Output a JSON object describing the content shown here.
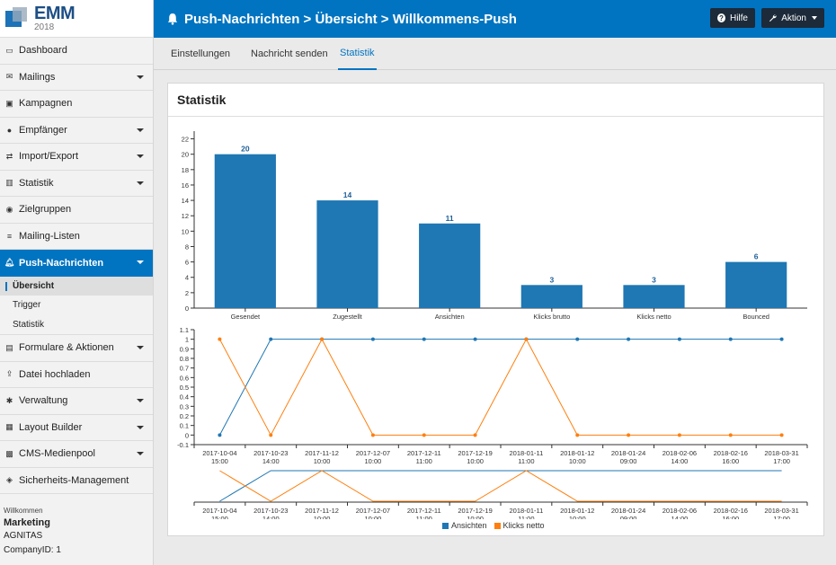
{
  "app": {
    "logo_title": "EMM",
    "logo_year": "2018"
  },
  "sidebar": {
    "items": [
      {
        "label": "Dashboard",
        "icon": "monitor-icon",
        "caret": false
      },
      {
        "label": "Mailings",
        "icon": "envelope-icon",
        "caret": true
      },
      {
        "label": "Kampagnen",
        "icon": "briefcase-icon",
        "caret": false
      },
      {
        "label": "Empfänger",
        "icon": "user-icon",
        "caret": true
      },
      {
        "label": "Import/Export",
        "icon": "exchange-icon",
        "caret": true
      },
      {
        "label": "Statistik",
        "icon": "bar-chart-icon",
        "caret": true
      },
      {
        "label": "Zielgruppen",
        "icon": "users-icon",
        "caret": false
      },
      {
        "label": "Mailing-Listen",
        "icon": "list-icon",
        "caret": false
      },
      {
        "label": "Push-Nachrichten",
        "icon": "bell-icon",
        "caret": true,
        "active": true
      },
      {
        "label": "Formulare & Aktionen",
        "icon": "form-icon",
        "caret": true
      },
      {
        "label": "Datei hochladen",
        "icon": "upload-icon",
        "caret": false
      },
      {
        "label": "Verwaltung",
        "icon": "gear-icon",
        "caret": true
      },
      {
        "label": "Layout Builder",
        "icon": "grid-icon",
        "caret": true
      },
      {
        "label": "CMS-Medienpool",
        "icon": "media-icon",
        "caret": true
      },
      {
        "label": "Sicherheits-Management",
        "icon": "shield-icon",
        "caret": false
      }
    ],
    "sub_items": [
      {
        "label": "Übersicht",
        "selected": true
      },
      {
        "label": "Trigger"
      },
      {
        "label": "Statistik"
      }
    ],
    "user": {
      "welcome": "Willkommen",
      "name": "Marketing",
      "company": "AGNITAS",
      "company_id": "CompanyID: 1"
    }
  },
  "header": {
    "title": "Push-Nachrichten > Übersicht > Willkommens-Push",
    "help_label": "Hilfe",
    "action_label": "Aktion"
  },
  "tabs": [
    {
      "label": "Einstellungen"
    },
    {
      "label": "Nachricht senden"
    },
    {
      "label": "Statistik",
      "active": true
    }
  ],
  "panel": {
    "title": "Statistik"
  },
  "colors": {
    "accent": "#0074c1",
    "bar": "#1f77b4",
    "series_ansichten": "#1f77b4",
    "series_klicks": "#ff7f0e"
  },
  "chart_data": [
    {
      "type": "bar",
      "categories": [
        "Gesendet",
        "Zugestellt",
        "Ansichten",
        "Klicks brutto",
        "Klicks netto",
        "Bounced"
      ],
      "values": [
        20,
        14,
        11,
        3,
        3,
        6
      ],
      "ylim": [
        0,
        23
      ],
      "yticks": [
        0,
        2,
        4,
        6,
        8,
        10,
        12,
        14,
        16,
        18,
        20,
        22
      ]
    },
    {
      "type": "line",
      "x": [
        "2017-10-04 15:00",
        "2017-10-23 14:00",
        "2017-11-12 10:00",
        "2017-12-07 10:00",
        "2017-12-11 11:00",
        "2017-12-19 10:00",
        "2018-01-11 11:00",
        "2018-01-12 10:00",
        "2018-01-24 09:00",
        "2018-02-06 14:00",
        "2018-02-16 16:00",
        "2018-03-31 17:00"
      ],
      "series": [
        {
          "name": "Ansichten",
          "values": [
            0,
            1,
            1,
            1,
            1,
            1,
            1,
            1,
            1,
            1,
            1,
            1
          ]
        },
        {
          "name": "Klicks netto",
          "values": [
            1,
            0,
            1,
            0,
            0,
            0,
            1,
            0,
            0,
            0,
            0,
            0
          ]
        }
      ],
      "ylim": [
        -0.1,
        1.1
      ],
      "yticks": [
        "1.1",
        "1",
        "0.9",
        "0.8",
        "0.7",
        "0.6",
        "0.5",
        "0.4",
        "0.3",
        "0.2",
        "0.1",
        "0",
        "-0.1"
      ],
      "legend": "bottom"
    }
  ]
}
